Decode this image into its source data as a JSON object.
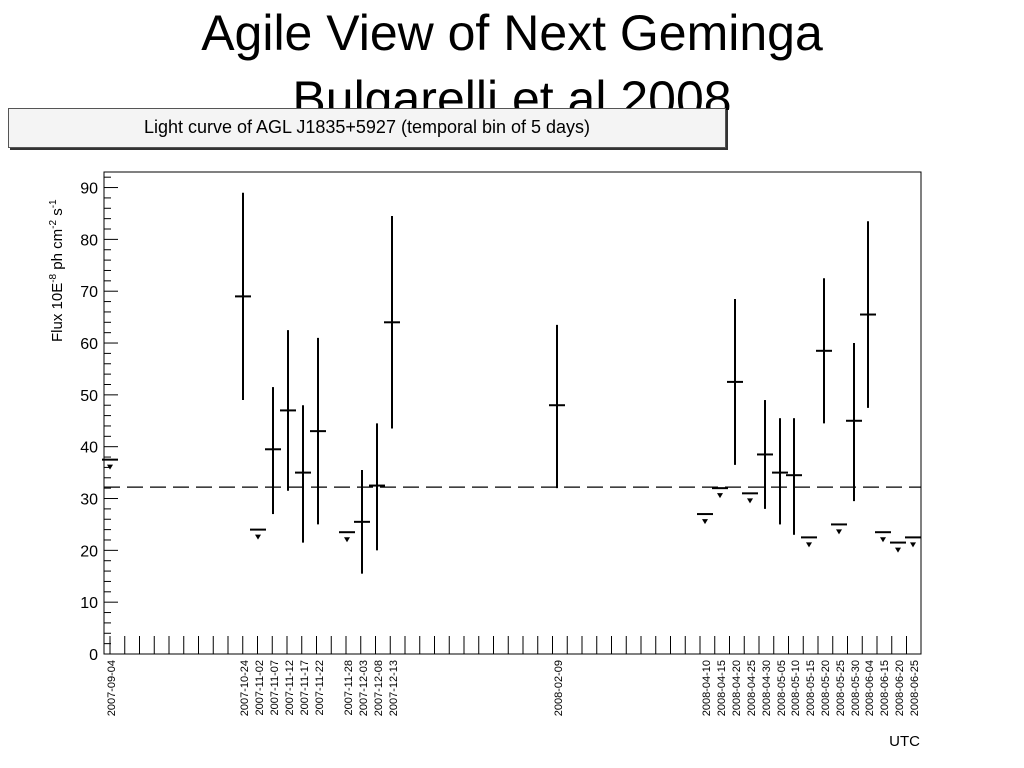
{
  "slide": {
    "title_line1": "Agile View of  Next Geminga",
    "title_line2": "Bulgarelli et al 2008"
  },
  "chart_data": {
    "type": "scatter",
    "title": "Light curve of AGL J1835+5927 (temporal bin of 5 days)",
    "xlabel": "UTC",
    "ylabel": "Flux 10E",
    "ylabel_exp1": "-8",
    "ylabel_mid": " ph cm",
    "ylabel_exp2": "-2",
    "ylabel_mid2": " s",
    "ylabel_exp3": "-1",
    "ylim": [
      0,
      93
    ],
    "yticks": [
      0,
      10,
      20,
      30,
      40,
      50,
      60,
      70,
      80,
      90
    ],
    "reference_level": 32.2,
    "grid": false,
    "x_tick_labels": [
      "2007-09-04",
      "2007-10-24",
      "2007-11-02",
      "2007-11-07",
      "2007-11-12",
      "2007-11-17",
      "2007-11-22",
      "2007-11-28",
      "2007-12-03",
      "2007-12-08",
      "2007-12-13",
      "2008-02-09",
      "2008-04-10",
      "2008-04-15",
      "2008-04-20",
      "2008-04-25",
      "2008-04-30",
      "2008-05-05",
      "2008-05-10",
      "2008-05-15",
      "2008-05-20",
      "2008-05-25",
      "2008-05-30",
      "2008-06-04",
      "2008-06-15",
      "2008-06-20",
      "2008-06-25"
    ],
    "detections": [
      {
        "date": "2007-10-24",
        "flux": 69,
        "low": 49,
        "high": 89
      },
      {
        "date": "2007-11-07",
        "flux": 39.5,
        "low": 27,
        "high": 51.5
      },
      {
        "date": "2007-11-12",
        "flux": 47,
        "low": 31.5,
        "high": 62.5
      },
      {
        "date": "2007-11-17",
        "flux": 35,
        "low": 21.5,
        "high": 48
      },
      {
        "date": "2007-11-22",
        "flux": 43,
        "low": 25,
        "high": 61
      },
      {
        "date": "2007-12-03",
        "flux": 25.5,
        "low": 15.5,
        "high": 35.5
      },
      {
        "date": "2007-12-08",
        "flux": 32.5,
        "low": 20,
        "high": 44.5
      },
      {
        "date": "2007-12-13",
        "flux": 64,
        "low": 43.5,
        "high": 84.5
      },
      {
        "date": "2008-02-09",
        "flux": 48,
        "low": 32,
        "high": 63.5
      },
      {
        "date": "2008-04-20",
        "flux": 52.5,
        "low": 36.5,
        "high": 68.5
      },
      {
        "date": "2008-04-30",
        "flux": 38.5,
        "low": 28,
        "high": 49
      },
      {
        "date": "2008-05-05",
        "flux": 35,
        "low": 25,
        "high": 45.5
      },
      {
        "date": "2008-05-10",
        "flux": 34.5,
        "low": 23,
        "high": 45.5
      },
      {
        "date": "2008-05-20",
        "flux": 58.5,
        "low": 44.5,
        "high": 72.5
      },
      {
        "date": "2008-05-30",
        "flux": 45,
        "low": 29.5,
        "high": 60
      },
      {
        "date": "2008-06-04",
        "flux": 65.5,
        "low": 47.5,
        "high": 83.5
      }
    ],
    "upper_limits": [
      {
        "date": "2007-09-04",
        "flux": 37.5
      },
      {
        "date": "2007-11-02",
        "flux": 24
      },
      {
        "date": "2007-11-28",
        "flux": 23.5
      },
      {
        "date": "2008-04-10",
        "flux": 27
      },
      {
        "date": "2008-04-15",
        "flux": 32
      },
      {
        "date": "2008-04-25",
        "flux": 31
      },
      {
        "date": "2008-05-15",
        "flux": 22.5
      },
      {
        "date": "2008-05-25",
        "flux": 25
      },
      {
        "date": "2008-06-15",
        "flux": 23.5
      },
      {
        "date": "2008-06-20",
        "flux": 21.5
      },
      {
        "date": "2008-06-25",
        "flux": 22.5
      }
    ]
  }
}
